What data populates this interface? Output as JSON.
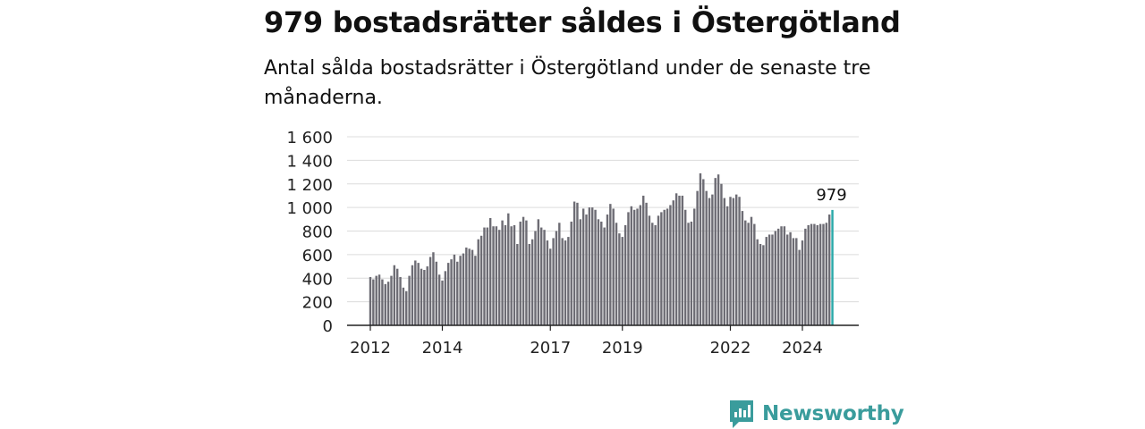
{
  "title": "979 bostadsrätter såldes i Östergötland",
  "subtitle": "Antal sålda bostadsrätter i Östergötland under de senaste tre månaderna.",
  "brand": {
    "name": "Newsworthy",
    "icon": "newsworthy-logo-icon",
    "color": "#3a9c9c"
  },
  "chart_data": {
    "type": "bar",
    "title": "",
    "xlabel": "",
    "ylabel": "",
    "ylim": [
      0,
      1600
    ],
    "yticks": [
      0,
      200,
      400,
      600,
      800,
      1000,
      1200,
      1400,
      1600
    ],
    "ytick_labels": [
      "0",
      "200",
      "400",
      "600",
      "800",
      "1 000",
      "1 200",
      "1 400",
      "1 600"
    ],
    "xticks": [
      "2012",
      "2014",
      "2017",
      "2019",
      "2022",
      "2024"
    ],
    "grid": true,
    "bar_color": "#6d6c74",
    "highlight_color": "#2aa9a9",
    "highlight_label": "979",
    "start": "2012-01",
    "values": [
      410,
      390,
      420,
      430,
      390,
      350,
      370,
      420,
      510,
      480,
      410,
      320,
      290,
      420,
      510,
      550,
      530,
      480,
      470,
      500,
      580,
      620,
      540,
      430,
      380,
      460,
      530,
      560,
      600,
      540,
      590,
      610,
      660,
      650,
      640,
      590,
      730,
      760,
      830,
      830,
      910,
      840,
      840,
      810,
      890,
      850,
      950,
      840,
      850,
      690,
      880,
      920,
      890,
      690,
      730,
      800,
      900,
      830,
      810,
      720,
      650,
      740,
      800,
      870,
      740,
      720,
      750,
      880,
      1050,
      1040,
      900,
      990,
      940,
      1000,
      1000,
      980,
      900,
      880,
      830,
      940,
      1030,
      990,
      870,
      780,
      750,
      850,
      960,
      1010,
      980,
      990,
      1020,
      1100,
      1040,
      930,
      870,
      850,
      930,
      960,
      980,
      990,
      1020,
      1060,
      1120,
      1100,
      1100,
      980,
      870,
      880,
      990,
      1140,
      1290,
      1240,
      1140,
      1080,
      1110,
      1250,
      1280,
      1200,
      1080,
      1010,
      1090,
      1080,
      1110,
      1090,
      970,
      890,
      870,
      920,
      860,
      730,
      690,
      680,
      750,
      770,
      770,
      800,
      820,
      840,
      840,
      770,
      790,
      740,
      740,
      640,
      720,
      820,
      850,
      860,
      860,
      850,
      860,
      860,
      870,
      940,
      979
    ]
  }
}
